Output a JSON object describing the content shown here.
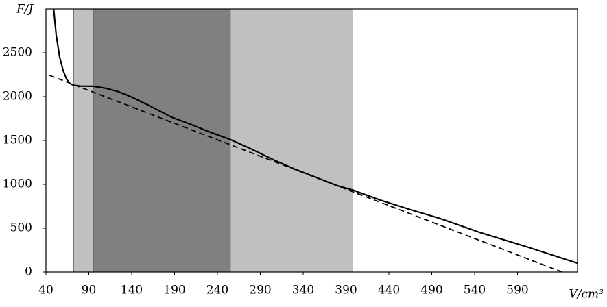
{
  "chart_data": {
    "type": "line",
    "x_label": "V/cm³",
    "y_label": "F/J",
    "xlim": [
      40,
      660
    ],
    "ylim": [
      0,
      3000
    ],
    "xticks": [
      40,
      90,
      140,
      190,
      240,
      290,
      340,
      390,
      440,
      490,
      540,
      590
    ],
    "yticks": [
      0,
      500,
      1000,
      1500,
      2000,
      2500
    ],
    "regions": [
      {
        "x": [
          72,
          398
        ],
        "color": "#c0c0c0"
      },
      {
        "x": [
          95,
          255
        ],
        "color": "#808080"
      }
    ],
    "series": [
      {
        "color": "#000000",
        "style": "solid",
        "x": [
          49,
          52,
          56,
          60,
          64,
          68,
          72,
          80,
          95,
          110,
          125,
          140,
          160,
          186,
          210,
          230,
          255,
          280,
          306,
          330,
          354,
          380,
          398,
          430,
          466,
          500,
          546,
          600,
          660
        ],
        "values": [
          3000,
          2700,
          2450,
          2300,
          2200,
          2150,
          2130,
          2120,
          2118,
          2095,
          2055,
          1995,
          1900,
          1768,
          1680,
          1600,
          1511,
          1400,
          1277,
          1175,
          1083,
          985,
          935,
          820,
          709,
          610,
          452,
          290,
          101
        ]
      },
      {
        "color": "#000000",
        "style": "dashed",
        "x": [
          44,
          642
        ],
        "values": [
          2243,
          0
        ]
      }
    ]
  }
}
